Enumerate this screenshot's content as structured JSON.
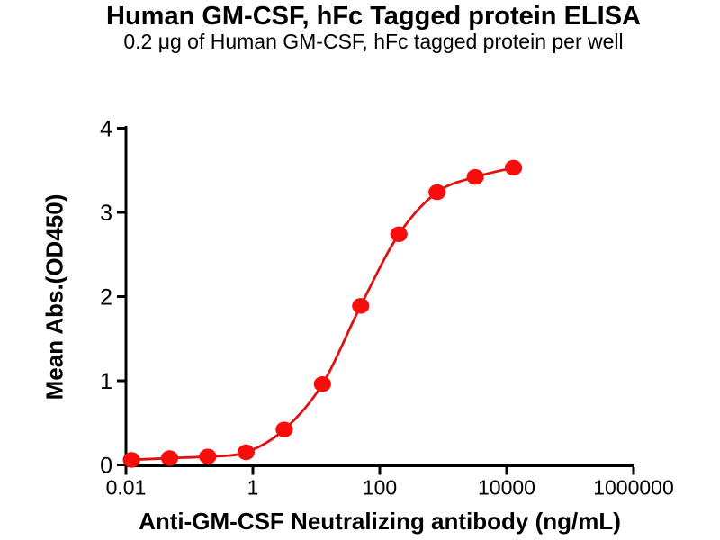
{
  "header": {
    "title": "Human GM-CSF, hFc Tagged protein ELISA",
    "subtitle": "0.2 μg of Human GM-CSF, hFc tagged protein per well"
  },
  "chart_data": {
    "type": "line",
    "title": "Human GM-CSF, hFc Tagged protein ELISA",
    "subtitle": "0.2 μg of Human GM-CSF, hFc tagged protein per well",
    "xlabel": "Anti-GM-CSF Neutralizing antibody (ng/mL)",
    "ylabel": "Mean Abs.(OD450)",
    "x_scale": "log10",
    "xlim": [
      0.01,
      1000000
    ],
    "ylim": [
      0,
      4
    ],
    "grid": false,
    "legend_position": "none",
    "x_ticks": [
      {
        "value": 0.01,
        "label": "0.01"
      },
      {
        "value": 1,
        "label": "1"
      },
      {
        "value": 100,
        "label": "100"
      },
      {
        "value": 10000,
        "label": "10000"
      },
      {
        "value": 1000000,
        "label": "1000000"
      }
    ],
    "y_ticks": [
      {
        "value": 0,
        "label": "0"
      },
      {
        "value": 1,
        "label": "1"
      },
      {
        "value": 2,
        "label": "2"
      },
      {
        "value": 3,
        "label": "3"
      },
      {
        "value": 4,
        "label": "4"
      }
    ],
    "series": [
      {
        "marker": "circle",
        "x": [
          0.0122,
          0.0488,
          0.195,
          0.781,
          3.125,
          12.5,
          50,
          200,
          800,
          3200,
          12800
        ],
        "y": [
          0.06,
          0.08,
          0.1,
          0.15,
          0.42,
          0.96,
          1.89,
          2.74,
          3.24,
          3.42,
          3.53
        ]
      }
    ],
    "colors": {
      "point": "#f90c0c",
      "curve": "#e01111",
      "axis": "#000000",
      "text": "#000000",
      "background": "#ffffff"
    }
  }
}
